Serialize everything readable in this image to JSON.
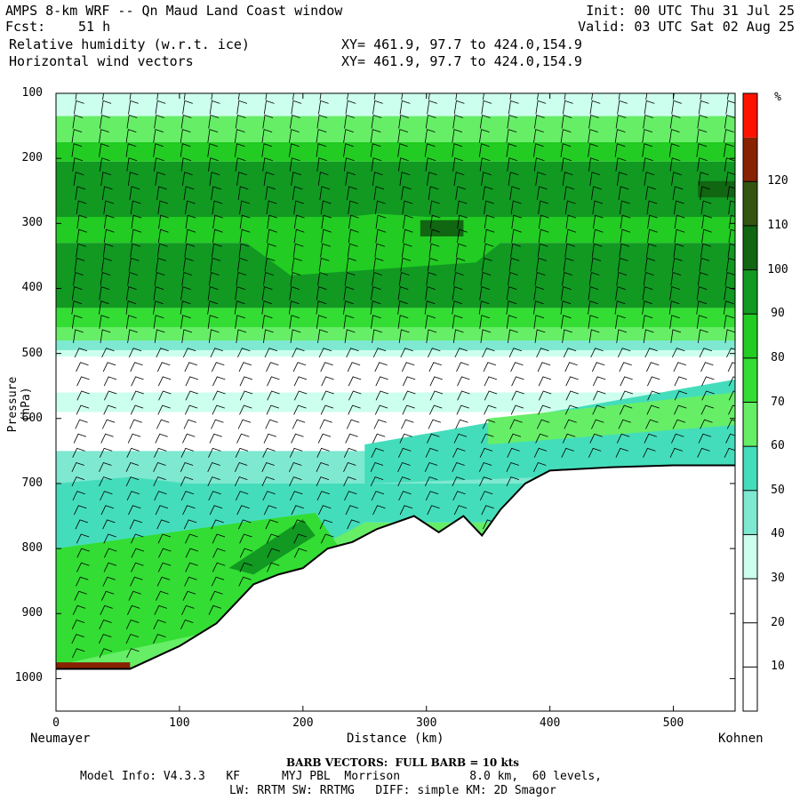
{
  "header": {
    "title": "AMPS 8-km WRF -- Qn Maud Land Coast window",
    "fcst_label": "Fcst:",
    "fcst_value": "51 h",
    "field1": "Relative humidity (w.r.t. ice)",
    "field2": "Horizontal wind vectors",
    "xy1": "XY= 461.9, 97.7 to 424.0,154.9",
    "xy2": "XY= 461.9, 97.7 to 424.0,154.9",
    "init": "Init: 00 UTC Thu 31 Jul 25",
    "valid": "Valid: 03 UTC Sat 02 Aug 25"
  },
  "chart_data": {
    "type": "heatmap",
    "title": "Relative humidity (w.r.t. ice)",
    "xlabel": "Distance (km)",
    "ylabel": "Pressure (hPa)",
    "xlim": [
      0,
      550
    ],
    "ylim": [
      1050,
      100
    ],
    "x_ticks": [
      "0",
      "100",
      "200",
      "300",
      "400",
      "500"
    ],
    "y_ticks": [
      "100",
      "200",
      "300",
      "400",
      "500",
      "600",
      "700",
      "800",
      "900",
      "1000"
    ],
    "x_endpoints": [
      "Neumayer",
      "Kohnen"
    ],
    "colorbar_unit": "%",
    "colorbar_ticks": [
      "10",
      "20",
      "30",
      "40",
      "50",
      "60",
      "70",
      "80",
      "90",
      "100",
      "110",
      "120"
    ],
    "colorbar_colors": [
      "#ffffff",
      "#ffffff",
      "#ffffff",
      "#ccffee",
      "#7fe8d0",
      "#44ddbb",
      "#66ee66",
      "#33dd33",
      "#22cc22",
      "#119922",
      "#116611",
      "#335511",
      "#882200",
      "#ff1100"
    ],
    "terrain_surface_hPa": {
      "x": [
        0,
        60,
        100,
        130,
        160,
        180,
        200,
        220,
        240,
        260,
        290,
        310,
        330,
        345,
        360,
        380,
        400,
        450,
        500,
        550
      ],
      "p": [
        985,
        985,
        950,
        915,
        855,
        840,
        830,
        800,
        790,
        770,
        750,
        775,
        750,
        780,
        740,
        700,
        680,
        675,
        672,
        672
      ]
    },
    "wind_barb_note": "BARB VECTORS:  FULL BARB = 10 kts"
  },
  "footer": {
    "barb_note": "BARB VECTORS:  FULL BARB = 10 kts",
    "model_line": "Model Info: V4.3.3   KF      MYJ PBL  Morrison          8.0 km,  60 levels,",
    "phys_line": "LW: RRTM SW: RRTMG   DIFF: simple KM: 2D Smagor"
  }
}
